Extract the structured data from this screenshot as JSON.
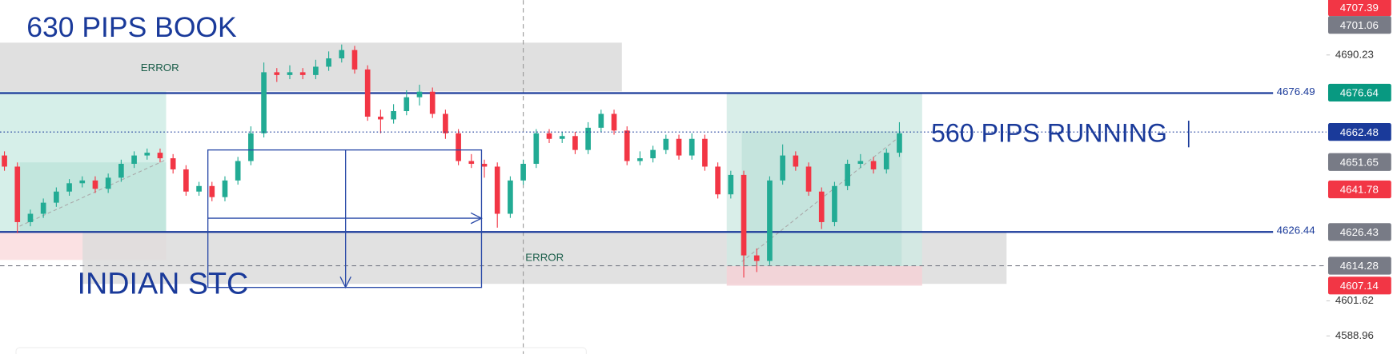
{
  "chart_data": {
    "type": "candlestick",
    "open": [
      4654,
      4650,
      4630,
      4633,
      4637,
      4641,
      4644,
      4645,
      4642,
      4646,
      4651,
      4654,
      4655,
      4653,
      4649,
      4641,
      4643,
      4639,
      4645,
      4652,
      4662,
      4684,
      4683,
      4684,
      4683,
      4686,
      4689,
      4692,
      4685,
      4668,
      4667,
      4670,
      4675,
      4677,
      4669,
      4662,
      4652,
      4651,
      4650,
      4633,
      4645,
      4651,
      4662,
      4660,
      4661,
      4656,
      4664,
      4669,
      4663,
      4652,
      4653,
      4656,
      4660,
      4654,
      4660,
      4650,
      4640,
      4647,
      4618,
      4616,
      4645,
      4654,
      4650,
      4641,
      4630,
      4643,
      4651,
      4652,
      4649,
      4655
    ],
    "high": [
      4655.5,
      4651.5,
      4634.5,
      4638.5,
      4642.5,
      4645.5,
      4646.5,
      4646.5,
      4647.5,
      4652.5,
      4655.5,
      4656.5,
      4656.5,
      4654.5,
      4650.5,
      4644.5,
      4644.5,
      4646.5,
      4653.5,
      4664.5,
      4687.5,
      4685.5,
      4686.5,
      4685.5,
      4688.5,
      4691.5,
      4694,
      4693.5,
      4686.5,
      4670.5,
      4672.5,
      4677.5,
      4679.5,
      4678.5,
      4670.5,
      4663.5,
      4654.5,
      4652.5,
      4651.5,
      4646.5,
      4652.5,
      4663.5,
      4663.5,
      4662.5,
      4662.5,
      4666,
      4670.5,
      4670.5,
      4664.5,
      4655.5,
      4657.5,
      4661.5,
      4661.5,
      4662,
      4661.5,
      4651.5,
      4648.5,
      4648.5,
      4620.5,
      4646.5,
      4658,
      4655.5,
      4651.5,
      4642.5,
      4644.5,
      4652.5,
      4654.5,
      4653.5,
      4656.5,
      4666
    ],
    "low": [
      4648.5,
      4626,
      4628.5,
      4631.5,
      4635.5,
      4639.5,
      4642.5,
      4640.5,
      4640.5,
      4644.5,
      4649.5,
      4652.5,
      4651.5,
      4647.5,
      4639.5,
      4639.5,
      4637.5,
      4637.5,
      4643.5,
      4650.5,
      4660.5,
      4680.5,
      4681.5,
      4681.5,
      4681.5,
      4684.5,
      4687.5,
      4683.5,
      4666.5,
      4662,
      4665.5,
      4668.5,
      4672,
      4667.5,
      4660,
      4650.5,
      4649.5,
      4646,
      4628,
      4631.5,
      4643.5,
      4649.5,
      4658.5,
      4658.5,
      4654.5,
      4654.5,
      4662.5,
      4661.5,
      4650.5,
      4650.5,
      4651.5,
      4654.5,
      4652.5,
      4652.5,
      4648.5,
      4638.5,
      4638.5,
      4610,
      4612,
      4614.5,
      4643.5,
      4648.5,
      4639.5,
      4627.5,
      4628.5,
      4641.5,
      4649.5,
      4647.5,
      4647.5,
      4653.5
    ],
    "close": [
      4650,
      4630,
      4633,
      4637,
      4641,
      4644,
      4645,
      4642,
      4646,
      4651,
      4654,
      4655,
      4653,
      4649,
      4641,
      4643,
      4639,
      4645,
      4652,
      4662,
      4684,
      4683,
      4684,
      4683,
      4686,
      4689,
      4692,
      4685,
      4668,
      4667,
      4670,
      4675,
      4677,
      4669,
      4662,
      4652,
      4651,
      4650,
      4633,
      4645,
      4651,
      4662,
      4660,
      4661,
      4656,
      4664,
      4669,
      4663,
      4652,
      4653,
      4656,
      4660,
      4654,
      4660,
      4650,
      4640,
      4647,
      4618,
      4616,
      4645,
      4654,
      4650,
      4641,
      4630,
      4643,
      4651,
      4652,
      4649,
      4655,
      4662
    ],
    "up_color": "#22ab94",
    "down_color": "#f23645",
    "ylim": [
      4582.5,
      4710.0
    ],
    "yticks": [
      4690.23,
      4601.62,
      4588.96
    ],
    "levels": [
      {
        "value": 4676.49,
        "color": "#1a3a9a"
      },
      {
        "value": 4626.44,
        "color": "#1a3a9a"
      }
    ],
    "price_tags": [
      {
        "value": 4707.39,
        "color": "#f23645"
      },
      {
        "value": 4701.06,
        "color": "#787b86"
      },
      {
        "value": 4676.64,
        "color": "#089981"
      },
      {
        "value": 4662.48,
        "color": "#1a3a9a",
        "line": "dotted"
      },
      {
        "value": 4651.65,
        "color": "#787b86"
      },
      {
        "value": 4641.78,
        "color": "#f23645"
      },
      {
        "value": 4626.43,
        "color": "#787b86"
      },
      {
        "value": 4614.28,
        "color": "#787b86",
        "line": "dashed"
      },
      {
        "value": 4607.14,
        "color": "#f23645"
      }
    ],
    "annotations": [
      "630 PIPS BOOK",
      "ERROR",
      "ERROR",
      "560 PIPS RUNNING",
      "INDIAN STC"
    ]
  }
}
